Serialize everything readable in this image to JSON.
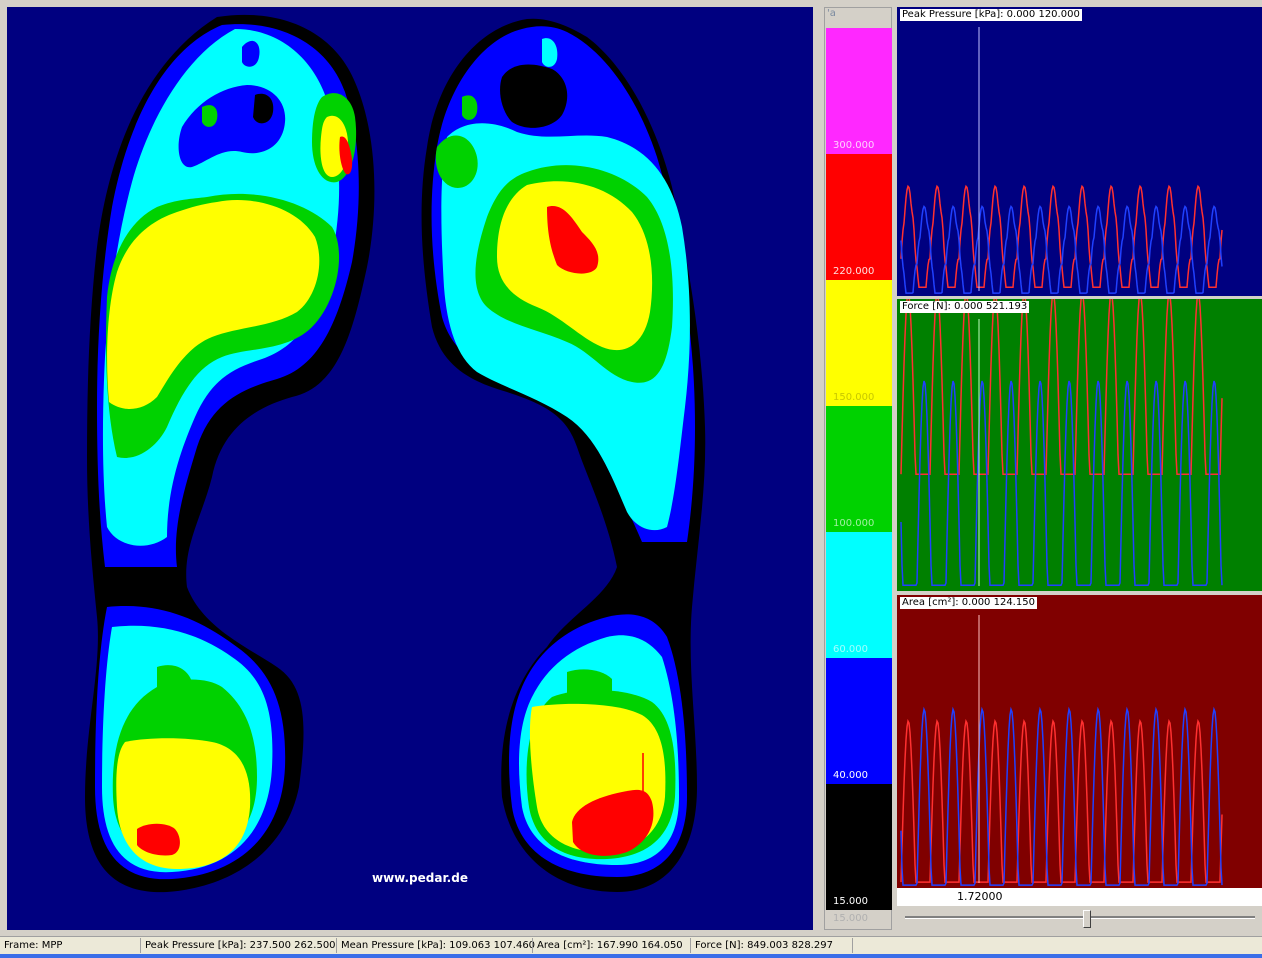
{
  "foot_view": {
    "site_label": "www.pedar.de"
  },
  "colorbar": {
    "unit_fragment": "'a",
    "bands": [
      {
        "color": "#ff28ff",
        "label": "300.000",
        "label_color": "#ffd0ff"
      },
      {
        "color": "#ff0000",
        "label": "220.000",
        "label_color": "#ffe0e0"
      },
      {
        "color": "#ffff00",
        "label": "150.000",
        "label_color": "#c8c800"
      },
      {
        "color": "#00d200",
        "label": "100.000",
        "label_color": "#a0f0a0"
      },
      {
        "color": "#00ffff",
        "label": "60.000",
        "label_color": "#a0ffff"
      },
      {
        "color": "#0000ff",
        "label": "40.000",
        "label_color": "#ffffff"
      },
      {
        "color": "#000000",
        "label": "15.000",
        "label_color": "#ffffff"
      }
    ],
    "bottom_label": "15.000"
  },
  "graphs": [
    {
      "title": "Peak Pressure [kPa]: 0.000  120.000",
      "background": "#000080",
      "marker_color": "#c0c0ff"
    },
    {
      "title": "Force [N]: 0.000  521.193",
      "background": "#008000",
      "marker_color": "#c0ffc0"
    },
    {
      "title": "Area [cm²]: 0.000  124.150",
      "background": "#800000",
      "marker_color": "#ffc0c0"
    }
  ],
  "time_bar": {
    "value": "1.72000"
  },
  "statusbar": {
    "frame": "Frame: MPP",
    "peak_pressure": "Peak Pressure [kPa]: 237.500   262.500",
    "mean_pressure": "Mean Pressure [kPa]: 109.063   107.460",
    "area": "Area [cm²]: 167.990   164.050",
    "force": "Force [N]: 849.003   828.297"
  }
}
